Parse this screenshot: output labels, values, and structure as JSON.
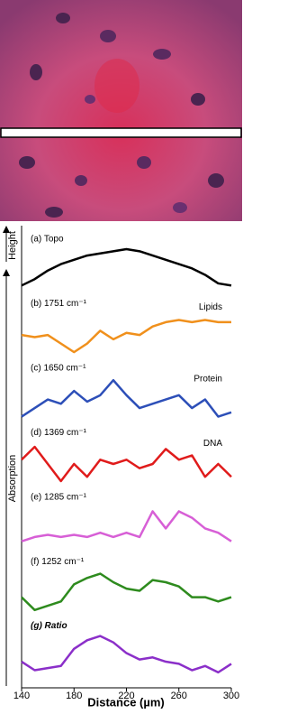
{
  "chart_data": {
    "type": "line",
    "x_label": "Distance (µm)",
    "y_label_top": "Height",
    "y_label": "Absorption",
    "x": [
      140,
      150,
      160,
      170,
      180,
      190,
      200,
      210,
      220,
      230,
      240,
      250,
      260,
      270,
      280,
      290,
      300
    ],
    "xlim": [
      140,
      300
    ],
    "xticks": [
      140,
      180,
      220,
      260,
      300
    ],
    "series": [
      {
        "name": "(a) Topo",
        "color": "#000000",
        "values": [
          0.15,
          0.3,
          0.5,
          0.65,
          0.75,
          0.85,
          0.9,
          0.95,
          1.0,
          0.95,
          0.85,
          0.75,
          0.65,
          0.55,
          0.4,
          0.2,
          0.15
        ]
      },
      {
        "name": "(b) 1751 cm⁻¹",
        "note": "Lipids",
        "color": "#f0901c",
        "values": [
          0.5,
          0.45,
          0.5,
          0.3,
          0.1,
          0.3,
          0.6,
          0.4,
          0.55,
          0.5,
          0.7,
          0.8,
          0.85,
          0.8,
          0.85,
          0.8,
          0.8
        ]
      },
      {
        "name": "(c) 1650 cm⁻¹",
        "note": "Protein",
        "color": "#2d4fb8",
        "values": [
          0.1,
          0.3,
          0.5,
          0.4,
          0.7,
          0.45,
          0.6,
          0.95,
          0.6,
          0.3,
          0.4,
          0.5,
          0.6,
          0.3,
          0.5,
          0.1,
          0.2
        ]
      },
      {
        "name": "(d) 1369 cm⁻¹",
        "note": "DNA",
        "color": "#e01b1b",
        "values": [
          0.6,
          0.9,
          0.5,
          0.1,
          0.5,
          0.2,
          0.6,
          0.5,
          0.6,
          0.4,
          0.5,
          0.85,
          0.6,
          0.7,
          0.2,
          0.5,
          0.2
        ]
      },
      {
        "name": "(e) 1285 cm⁻¹",
        "color": "#d75fd6",
        "values": [
          0.2,
          0.3,
          0.35,
          0.3,
          0.35,
          0.3,
          0.4,
          0.3,
          0.4,
          0.3,
          0.9,
          0.5,
          0.9,
          0.75,
          0.5,
          0.4,
          0.2
        ]
      },
      {
        "name": "(f) 1252 cm⁻¹",
        "color": "#2e8b1e",
        "values": [
          0.4,
          0.1,
          0.2,
          0.3,
          0.7,
          0.85,
          0.95,
          0.75,
          0.6,
          0.55,
          0.8,
          0.75,
          0.65,
          0.4,
          0.4,
          0.3,
          0.4
        ]
      },
      {
        "name": "(g) Ratio",
        "color": "#8b2fc9",
        "values": [
          0.4,
          0.2,
          0.25,
          0.3,
          0.7,
          0.9,
          1.0,
          0.85,
          0.6,
          0.45,
          0.5,
          0.4,
          0.35,
          0.2,
          0.3,
          0.15,
          0.35
        ]
      }
    ]
  }
}
